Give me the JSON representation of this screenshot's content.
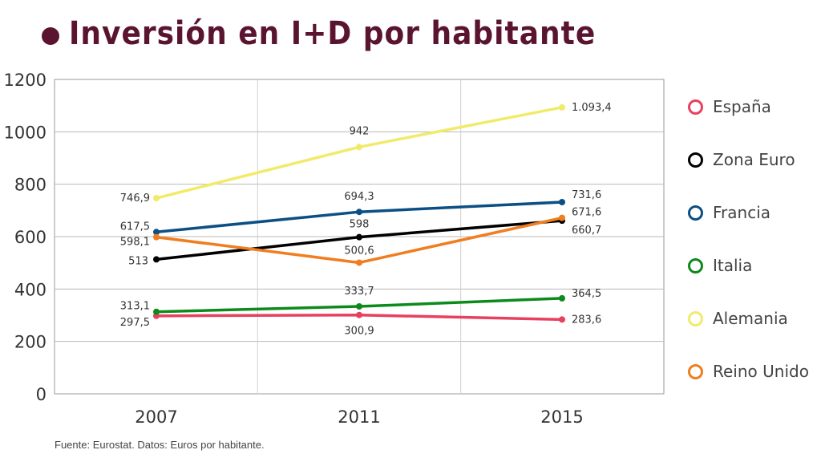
{
  "title": "Inversión en I+D por habitante",
  "source": "Fuente: Eurostat. Datos: Euros por habitante.",
  "chart_data": {
    "type": "line",
    "categories": [
      "2007",
      "2011",
      "2015"
    ],
    "ylim": [
      0,
      1200
    ],
    "yticks": [
      "0",
      "200",
      "400",
      "600",
      "800",
      "1000",
      "1200"
    ],
    "grid": true,
    "legend_position": "right",
    "series": [
      {
        "name": "España",
        "color": "#e8405f",
        "values": [
          297.5,
          300.9,
          283.6
        ],
        "labels": [
          "297,5",
          "300,9",
          "283,6"
        ]
      },
      {
        "name": "Zona Euro",
        "color": "#000000",
        "values": [
          513,
          598,
          660.7
        ],
        "labels": [
          "513",
          "598",
          "660,7"
        ]
      },
      {
        "name": "Francia",
        "color": "#0b4f84",
        "values": [
          617.5,
          694.3,
          731.6
        ],
        "labels": [
          "617,5",
          "694,3",
          "731,6"
        ]
      },
      {
        "name": "Italia",
        "color": "#0d8a1c",
        "values": [
          313.1,
          333.7,
          364.5
        ],
        "labels": [
          "313,1",
          "333,7",
          "364,5"
        ]
      },
      {
        "name": "Alemania",
        "color": "#f2ea6a",
        "values": [
          746.9,
          942,
          1093.4
        ],
        "labels": [
          "746,9",
          "942",
          "1.093,4"
        ]
      },
      {
        "name": "Reino Unido",
        "color": "#f07d1f",
        "values": [
          598.1,
          500.6,
          671.6
        ],
        "labels": [
          "598,1",
          "500,6",
          "671,6"
        ]
      }
    ]
  }
}
